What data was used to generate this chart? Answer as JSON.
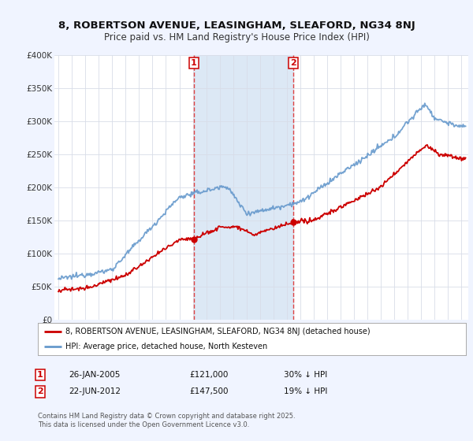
{
  "title_line1": "8, ROBERTSON AVENUE, LEASINGHAM, SLEAFORD, NG34 8NJ",
  "title_line2": "Price paid vs. HM Land Registry's House Price Index (HPI)",
  "legend_label_red": "8, ROBERTSON AVENUE, LEASINGHAM, SLEAFORD, NG34 8NJ (detached house)",
  "legend_label_blue": "HPI: Average price, detached house, North Kesteven",
  "annotation1_date": "26-JAN-2005",
  "annotation1_price": "£121,000",
  "annotation1_hpi": "30% ↓ HPI",
  "annotation2_date": "22-JUN-2012",
  "annotation2_price": "£147,500",
  "annotation2_hpi": "19% ↓ HPI",
  "vline1_x": 2005.07,
  "vline2_x": 2012.47,
  "footer": "Contains HM Land Registry data © Crown copyright and database right 2025.\nThis data is licensed under the Open Government Licence v3.0.",
  "red_color": "#cc0000",
  "blue_color": "#6699cc",
  "vline_color": "#dd4444",
  "span_color": "#dce8f5",
  "background_color": "#f0f4ff",
  "plot_bg_color": "#ffffff",
  "ylim": [
    0,
    400000
  ],
  "xlim": [
    1994.7,
    2025.5
  ],
  "yticks": [
    0,
    50000,
    100000,
    150000,
    200000,
    250000,
    300000,
    350000,
    400000
  ],
  "ytick_labels": [
    "£0",
    "£50K",
    "£100K",
    "£150K",
    "£200K",
    "£250K",
    "£300K",
    "£350K",
    "£400K"
  ],
  "xticks": [
    1995,
    1996,
    1997,
    1998,
    1999,
    2000,
    2001,
    2002,
    2003,
    2004,
    2005,
    2006,
    2007,
    2008,
    2009,
    2010,
    2011,
    2012,
    2013,
    2014,
    2015,
    2016,
    2017,
    2018,
    2019,
    2020,
    2021,
    2022,
    2023,
    2024,
    2025
  ]
}
